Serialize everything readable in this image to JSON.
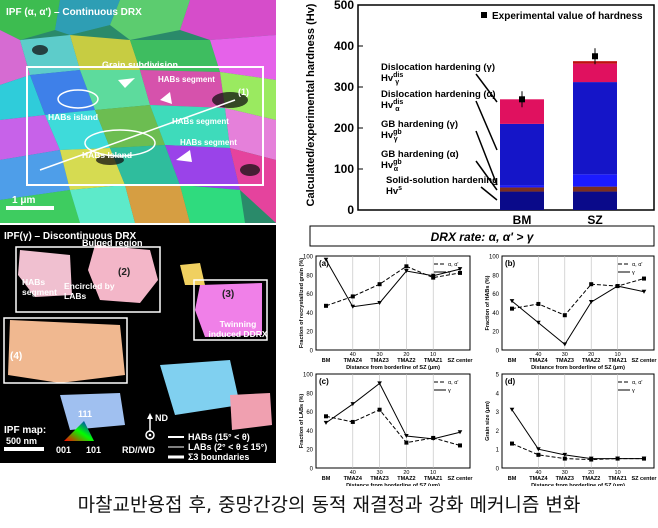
{
  "panel_top_left": {
    "title": "IPF (α, α') – Continuous DRX",
    "labels": [
      "Grain subdivision",
      "HABs segment",
      "HABs island",
      "HABs segment",
      "HABs Island",
      "HABs segment"
    ],
    "line_label": "(1)",
    "scalebar": "1 μm"
  },
  "panel_bottom_left": {
    "title": "IPF(γ) – Discontinuous DRX",
    "bulged": "Bulged region",
    "labels": [
      "(2)",
      "(3)",
      "(4)"
    ],
    "habs_segment": "HABs segment",
    "encircled": "Encircled by LABs",
    "twinning": "Twinning induced DDRX",
    "ipf_map": "IPF map:",
    "ipf_111": "111",
    "ipf_001": "001",
    "ipf_101": "101",
    "nd": "ND",
    "rdwd": "RD//WD",
    "scalebar": "500 nm",
    "legend": [
      "HABs (15° < θ)",
      "LABs (2° < θ ≤ 15°)",
      "Σ3 boundaries"
    ]
  },
  "hardness_chart": {
    "ylabel": "Calculated/experimental hardness (Hv)",
    "legend": "Experimental value of hardness",
    "annotations": [
      "Dislocation hardening (γ), Hv",
      "Dislocation hardening (α), Hv",
      "GB hardening (γ), Hv",
      "GB hardening (α), Hv",
      "Solid-solution hardening, Hv"
    ],
    "ann_super": [
      "dis",
      "dis",
      "gb",
      "gb",
      "s"
    ],
    "ann_sub": [
      "γ",
      "α",
      "γ",
      "α",
      ""
    ],
    "drx_rate": "DRX rate: α, α' > γ"
  },
  "small_charts": {
    "xlabel": "Distance from borderline of SZ (μm)",
    "ylabels": [
      "Fraction of recrystallized grain (%)",
      "Fraction of HABs (%)",
      "Fraction of LABs (%)",
      "Grain size (μm)"
    ],
    "panel_ids": [
      "(a)",
      "(b)",
      "(c)",
      "(d)"
    ],
    "legend": [
      "α, α'",
      "γ"
    ]
  },
  "chart_data": [
    {
      "type": "bar",
      "categories": [
        "BM",
        "SZ"
      ],
      "ylim": [
        0,
        500
      ],
      "yticks": [
        0,
        100,
        200,
        300,
        400,
        500
      ],
      "series": [
        {
          "values": [
            45,
            45
          ],
          "color": "#0a0a8a"
        },
        {
          "values": [
            10,
            12
          ],
          "color": "#7b2e1e"
        },
        {
          "values": [
            5,
            30
          ],
          "color": "#1b1bff"
        },
        {
          "values": [
            150,
            225
          ],
          "color": "#1515c8"
        },
        {
          "values": [
            60,
            45
          ],
          "color": "#e0115f"
        },
        {
          "values": [
            0,
            6
          ],
          "color": "#bf1010"
        }
      ],
      "experimental": [
        270,
        375
      ]
    },
    {
      "type": "line",
      "id": "(a)",
      "categories": [
        "BM",
        "40",
        "30",
        "20",
        "10",
        "SZ center"
      ],
      "category_labels": [
        "BM",
        "TMAZ4",
        "TMAZ3",
        "TMAZ2",
        "TMAZ1",
        "SZ center"
      ],
      "ylim": [
        0,
        100
      ],
      "yticks": [
        0,
        20,
        40,
        60,
        80,
        100
      ],
      "series": [
        {
          "values": [
            47,
            57,
            70,
            89,
            77,
            82
          ]
        },
        {
          "values": [
            96,
            46,
            50,
            84,
            79,
            86
          ]
        }
      ]
    },
    {
      "type": "line",
      "id": "(b)",
      "categories": [
        "BM",
        "40",
        "30",
        "20",
        "10",
        "SZ center"
      ],
      "category_labels": [
        "BM",
        "TMAZ4",
        "TMAZ3",
        "TMAZ2",
        "TMAZ1",
        "SZ center"
      ],
      "ylim": [
        0,
        100
      ],
      "yticks": [
        0,
        20,
        40,
        60,
        80,
        100
      ],
      "series": [
        {
          "values": [
            44,
            49,
            37,
            70,
            68,
            76
          ]
        },
        {
          "values": [
            52,
            29,
            6,
            51,
            68,
            62
          ]
        }
      ]
    },
    {
      "type": "line",
      "id": "(c)",
      "categories": [
        "BM",
        "40",
        "30",
        "20",
        "10",
        "SZ center"
      ],
      "category_labels": [
        "BM",
        "TMAZ4",
        "TMAZ3",
        "TMAZ2",
        "TMAZ1",
        "SZ center"
      ],
      "ylim": [
        0,
        100
      ],
      "yticks": [
        0,
        20,
        40,
        60,
        80,
        100
      ],
      "series": [
        {
          "values": [
            55,
            49,
            62,
            27,
            32,
            24
          ]
        },
        {
          "values": [
            48,
            68,
            90,
            34,
            31,
            38
          ]
        }
      ]
    },
    {
      "type": "line",
      "id": "(d)",
      "categories": [
        "BM",
        "40",
        "30",
        "20",
        "10",
        "SZ center"
      ],
      "category_labels": [
        "BM",
        "TMAZ4",
        "TMAZ3",
        "TMAZ2",
        "TMAZ1",
        "SZ center"
      ],
      "ylim": [
        0,
        5
      ],
      "yticks": [
        0,
        1,
        2,
        3,
        4,
        5
      ],
      "series": [
        {
          "values": [
            1.3,
            0.7,
            0.5,
            0.45,
            0.5,
            0.5
          ]
        },
        {
          "values": [
            3.1,
            1.0,
            0.7,
            0.5,
            0.5,
            0.5
          ]
        }
      ]
    }
  ],
  "caption": "마찰교반용접 후, 중망간강의 동적 재결정과 강화 메커니즘 변화"
}
